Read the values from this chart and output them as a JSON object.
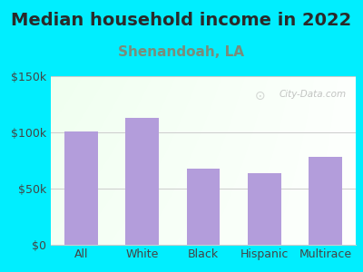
{
  "title": "Median household income in 2022",
  "subtitle": "Shenandoah, LA",
  "categories": [
    "All",
    "White",
    "Black",
    "Hispanic",
    "Multirace"
  ],
  "values": [
    101000,
    113000,
    68000,
    64000,
    78000
  ],
  "bar_color": "#b39ddb",
  "background_outer": "#00eeff",
  "ylim": [
    0,
    150000
  ],
  "yticks": [
    0,
    50000,
    100000,
    150000
  ],
  "ytick_labels": [
    "$0",
    "$50k",
    "$100k",
    "$150k"
  ],
  "title_fontsize": 14,
  "subtitle_fontsize": 11,
  "tick_fontsize": 9,
  "watermark": "City-Data.com",
  "title_color": "#2a2a2a",
  "subtitle_color": "#7a8c7a",
  "tick_color": "#444444",
  "grid_color": "#cccccc"
}
